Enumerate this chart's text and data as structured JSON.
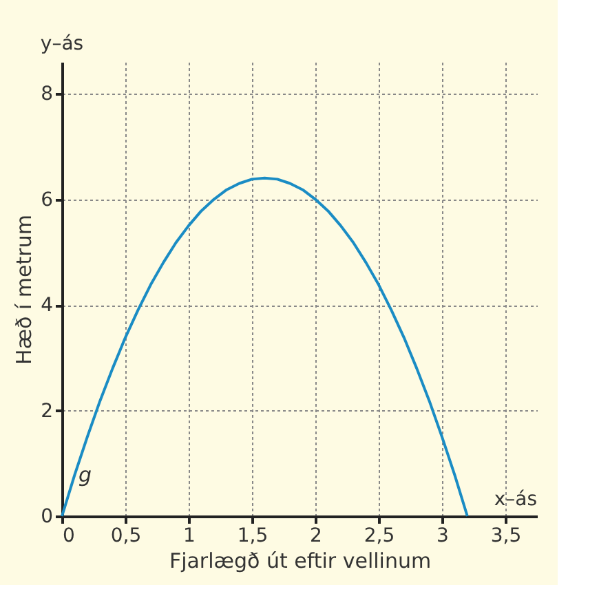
{
  "chart_data": {
    "type": "line",
    "xlabel": "Fjarlægð út eftir vellinum",
    "ylabel": "Hæð í metrum",
    "annotations": [
      "y–ás",
      "x–ás",
      "g"
    ],
    "x": [
      0,
      0.1,
      0.2,
      0.3,
      0.4,
      0.5,
      0.6,
      0.7,
      0.8,
      0.9,
      1.0,
      1.1,
      1.2,
      1.3,
      1.4,
      1.5,
      1.6,
      1.7,
      1.8,
      1.9,
      2.0,
      2.1,
      2.2,
      2.3,
      2.4,
      2.5,
      2.6,
      2.7,
      2.8,
      2.9,
      3.0,
      3.1,
      3.2
    ],
    "series": [
      {
        "color": "#1a8cc4",
        "values": [
          0,
          0.78,
          1.5,
          2.18,
          2.8,
          3.38,
          3.9,
          4.38,
          4.8,
          5.18,
          5.5,
          5.78,
          6.0,
          6.18,
          6.3,
          6.38,
          6.4,
          6.38,
          6.3,
          6.18,
          6.0,
          5.78,
          5.5,
          5.18,
          4.8,
          4.38,
          3.9,
          3.38,
          2.8,
          2.18,
          1.5,
          0.78,
          0
        ]
      }
    ],
    "xlim": [
      0,
      3.75
    ],
    "ylim": [
      0,
      8.6
    ],
    "xticks": [
      0,
      {
        "value": 0.5,
        "label": "0,5"
      },
      1,
      {
        "value": 1.5,
        "label": "1,5"
      },
      2,
      {
        "value": 2.5,
        "label": "2,5"
      },
      3,
      {
        "value": 3.5,
        "label": "3,5"
      }
    ],
    "yticks": [
      0,
      2,
      4,
      6,
      8
    ],
    "grid": true,
    "marker": "none",
    "line_style": "solid"
  }
}
